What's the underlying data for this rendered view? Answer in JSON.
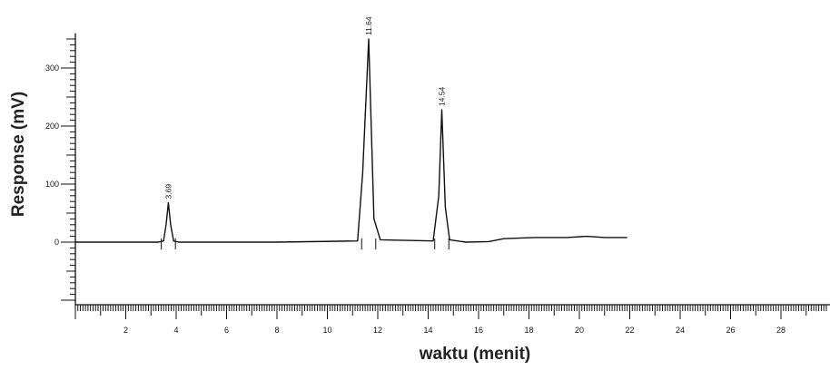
{
  "chart_data": {
    "type": "line",
    "title": "",
    "xlabel": "waktu (menit)",
    "ylabel": "Response (mV)",
    "xlim": [
      0,
      30
    ],
    "ylim": [
      -110,
      360
    ],
    "x_ticks": [
      2,
      4,
      6,
      8,
      10,
      12,
      14,
      16,
      18,
      20,
      22,
      24,
      26,
      28
    ],
    "y_ticks": [
      0,
      100,
      200,
      300
    ],
    "grid": false,
    "series": [
      {
        "x": [
          0,
          3.3,
          3.5,
          3.6,
          3.69,
          3.78,
          3.9,
          4.1,
          8,
          11.2,
          11.4,
          11.64,
          11.85,
          12.1,
          14.2,
          14.42,
          14.54,
          14.68,
          14.85,
          15.5,
          16.4,
          17.0,
          18.2,
          19.5,
          20.3,
          21.0,
          21.9
        ],
        "y": [
          0,
          0,
          2,
          30,
          68,
          30,
          2,
          0,
          0,
          2,
          120,
          350,
          40,
          4,
          2,
          80,
          228,
          60,
          4,
          0,
          1,
          6,
          8,
          8,
          10,
          8,
          8
        ]
      }
    ],
    "peaks": [
      {
        "retention_time": 3.69,
        "label": "3.69"
      },
      {
        "retention_time": 11.64,
        "label": "11.64"
      },
      {
        "retention_time": 14.54,
        "label": "14.54"
      }
    ]
  }
}
